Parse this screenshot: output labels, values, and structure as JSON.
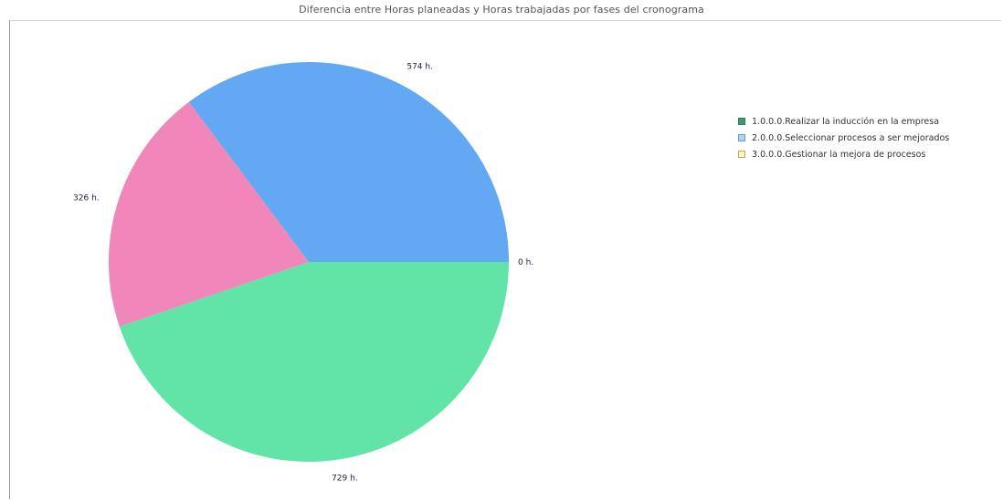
{
  "chart_data": {
    "type": "pie",
    "title": "Diferencia entre Horas planeadas y Horas trabajadas por fases del cronograma",
    "slices": [
      {
        "label": "0 h.",
        "value": 0,
        "color": "#3ab07b"
      },
      {
        "label": "729 h.",
        "value": 729,
        "color": "#62e3a8"
      },
      {
        "label": "326 h.",
        "value": 326,
        "color": "#f086ba"
      },
      {
        "label": "574 h.",
        "value": 574,
        "color": "#62a8f2"
      }
    ],
    "legend_position": "right",
    "legend": [
      {
        "name": "1.0.0.0.Realizar la inducción en la empresa",
        "swatch": "#3a9a6e",
        "border": "#2f7d58"
      },
      {
        "name": "2.0.0.0.Seleccionar procesos a ser mejorados",
        "swatch": "#a9d4f5",
        "border": "#6a9cc4"
      },
      {
        "name": "3.0.0.0.Gestionar la mejora de procesos",
        "swatch": "#f6f3c8",
        "border": "#b5ae4a"
      }
    ]
  }
}
